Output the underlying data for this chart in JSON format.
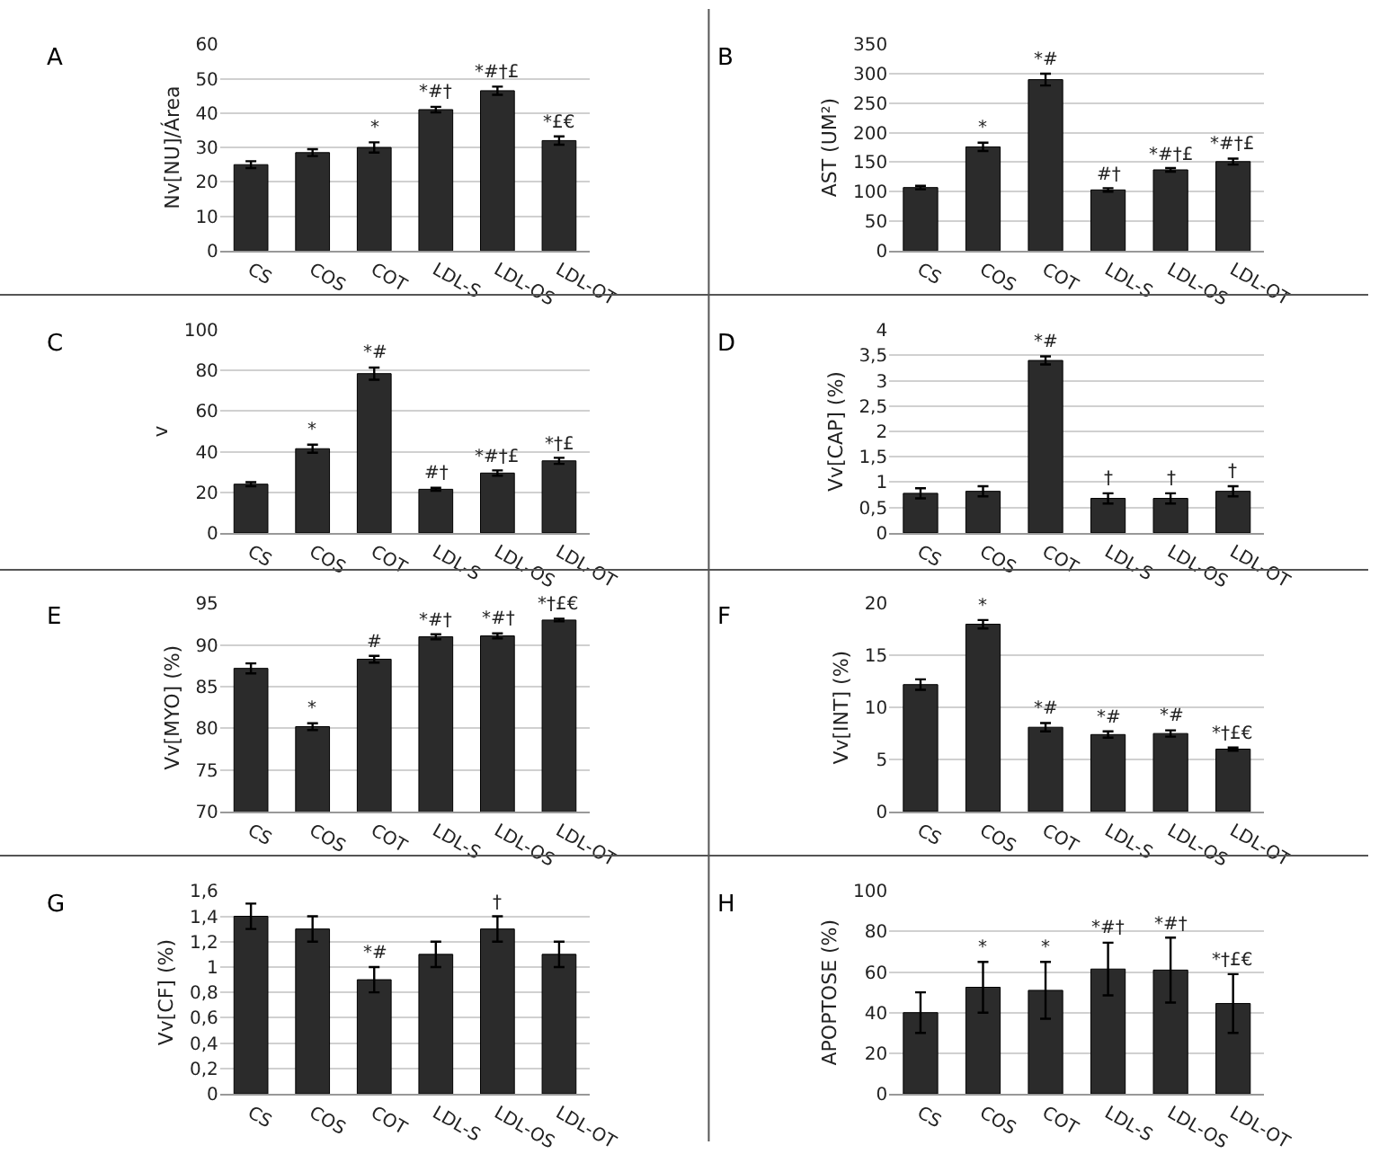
{
  "chart_data": [
    {
      "type": "bar",
      "title": "A",
      "ylabel": "Nv[NU]/Área",
      "categories": [
        "CS",
        "COS",
        "COT",
        "LDL-S",
        "LDL-OS",
        "LDL-OT"
      ],
      "values": [
        25,
        28.5,
        30,
        41,
        46.5,
        32
      ],
      "errors": [
        1,
        1,
        1.5,
        0.8,
        1.2,
        1.2
      ],
      "color": "#2b2b2b",
      "ylim": [
        0,
        60
      ],
      "yticks": [
        0,
        10,
        20,
        30,
        40,
        50,
        60
      ],
      "grid": "y",
      "annotations": [
        {
          "text": "*",
          "x": "COT",
          "y": 31.5
        },
        {
          "text": "*#†",
          "x": "LDL-S",
          "y": 41.8
        },
        {
          "text": "*#†£",
          "x": "LDL-OS",
          "y": 47.7
        },
        {
          "text": "*£€",
          "x": "LDL-OT",
          "y": 33.2
        }
      ]
    },
    {
      "type": "bar",
      "title": "B",
      "ylabel": "AST (UM²)",
      "categories": [
        "CS",
        "COS",
        "COT",
        "LDL-S",
        "LDL-OS",
        "LDL-OT"
      ],
      "values": [
        107,
        176,
        290,
        103,
        137,
        151
      ],
      "errors": [
        3,
        7,
        10,
        3,
        3,
        5
      ],
      "color": "#2b2b2b",
      "ylim": [
        0,
        350
      ],
      "yticks": [
        0,
        50,
        100,
        150,
        200,
        250,
        300,
        350
      ],
      "grid": "y",
      "annotations": [
        {
          "text": "*",
          "x": "COS",
          "y": 183
        },
        {
          "text": "*#",
          "x": "COT",
          "y": 300
        },
        {
          "text": "#†",
          "x": "LDL-S",
          "y": 106
        },
        {
          "text": "*#†£",
          "x": "LDL-OS",
          "y": 140
        },
        {
          "text": "*#†£",
          "x": "LDL-OT",
          "y": 156
        }
      ]
    },
    {
      "type": "bar",
      "title": "C",
      "ylabel": "v",
      "categories": [
        "CS",
        "COS",
        "COT",
        "LDL-S",
        "LDL-OS",
        "LDL-OT"
      ],
      "values": [
        24,
        41.5,
        78.5,
        21.5,
        29.5,
        35.5
      ],
      "errors": [
        1,
        2,
        3,
        0.7,
        1.3,
        1.5
      ],
      "color": "#2b2b2b",
      "ylim": [
        0,
        100
      ],
      "yticks": [
        0,
        20,
        40,
        60,
        80,
        100
      ],
      "grid": "y",
      "annotations": [
        {
          "text": "*",
          "x": "COS",
          "y": 43.5
        },
        {
          "text": "*#",
          "x": "COT",
          "y": 81.5
        },
        {
          "text": "#†",
          "x": "LDL-S",
          "y": 22.2
        },
        {
          "text": "*#†£",
          "x": "LDL-OS",
          "y": 30.8
        },
        {
          "text": "*†£",
          "x": "LDL-OT",
          "y": 37
        }
      ]
    },
    {
      "type": "bar",
      "title": "D",
      "ylabel": "Vv[CAP] (%)",
      "categories": [
        "CS",
        "COS",
        "COT",
        "LDL-S",
        "LDL-OS",
        "LDL-OT"
      ],
      "values": [
        0.78,
        0.82,
        3.4,
        0.68,
        0.68,
        0.82
      ],
      "errors": [
        0.1,
        0.1,
        0.08,
        0.1,
        0.1,
        0.1
      ],
      "color": "#2b2b2b",
      "ylim": [
        0,
        4
      ],
      "yticks": [
        0,
        {
          "value": 0.5,
          "label": "0,5"
        },
        1,
        {
          "value": 1.5,
          "label": "1,5"
        },
        2,
        {
          "value": 2.5,
          "label": "2,5"
        },
        3,
        {
          "value": 3.5,
          "label": "3,5"
        },
        4
      ],
      "grid": "y",
      "annotations": [
        {
          "text": "*#",
          "x": "COT",
          "y": 3.48
        },
        {
          "text": "†",
          "x": "LDL-S",
          "y": 0.78
        },
        {
          "text": "†",
          "x": "LDL-OS",
          "y": 0.78
        },
        {
          "text": "†",
          "x": "LDL-OT",
          "y": 0.92
        }
      ]
    },
    {
      "type": "bar",
      "title": "E",
      "ylabel": "Vv[MYO] (%)",
      "categories": [
        "CS",
        "COS",
        "COT",
        "LDL-S",
        "LDL-OS",
        "LDL-OT"
      ],
      "values": [
        87.2,
        80.2,
        88.3,
        91,
        91.1,
        93
      ],
      "errors": [
        0.6,
        0.4,
        0.4,
        0.3,
        0.3,
        0.15
      ],
      "color": "#2b2b2b",
      "ylim": [
        70,
        95
      ],
      "yticks": [
        70,
        75,
        80,
        85,
        90,
        95
      ],
      "grid": "y",
      "annotations": [
        {
          "text": "*",
          "x": "COS",
          "y": 80.6
        },
        {
          "text": "#",
          "x": "COT",
          "y": 88.7
        },
        {
          "text": "*#†",
          "x": "LDL-S",
          "y": 91.3
        },
        {
          "text": "*#†",
          "x": "LDL-OS",
          "y": 91.4
        },
        {
          "text": "*†£€",
          "x": "LDL-OT",
          "y": 93.15
        }
      ]
    },
    {
      "type": "bar",
      "title": "F",
      "ylabel": "Vv[INT] (%)",
      "categories": [
        "CS",
        "COS",
        "COT",
        "LDL-S",
        "LDL-OS",
        "LDL-OT"
      ],
      "values": [
        12.2,
        18,
        8.1,
        7.4,
        7.5,
        6
      ],
      "errors": [
        0.5,
        0.4,
        0.4,
        0.3,
        0.3,
        0.15
      ],
      "color": "#2b2b2b",
      "ylim": [
        0,
        20
      ],
      "yticks": [
        0,
        5,
        10,
        15,
        20
      ],
      "grid": "y",
      "annotations": [
        {
          "text": "*",
          "x": "COS",
          "y": 18.4
        },
        {
          "text": "*#",
          "x": "COT",
          "y": 8.5
        },
        {
          "text": "*#",
          "x": "LDL-S",
          "y": 7.7
        },
        {
          "text": "*#",
          "x": "LDL-OS",
          "y": 7.8
        },
        {
          "text": "*†£€",
          "x": "LDL-OT",
          "y": 6.15
        }
      ]
    },
    {
      "type": "bar",
      "title": "G",
      "ylabel": "Vv[CF] (%)",
      "categories": [
        "CS",
        "COS",
        "COT",
        "LDL-S",
        "LDL-OS",
        "LDL-OT"
      ],
      "values": [
        1.4,
        1.3,
        0.9,
        1.1,
        1.3,
        1.1
      ],
      "errors": [
        0.1,
        0.1,
        0.1,
        0.1,
        0.1,
        0.1
      ],
      "color": "#2b2b2b",
      "ylim": [
        0,
        1.6
      ],
      "yticks": [
        0,
        {
          "value": 0.2,
          "label": "0,2"
        },
        {
          "value": 0.4,
          "label": "0,4"
        },
        {
          "value": 0.6,
          "label": "0,6"
        },
        {
          "value": 0.8,
          "label": "0,8"
        },
        1,
        {
          "value": 1.2,
          "label": "1,2"
        },
        {
          "value": 1.4,
          "label": "1,4"
        },
        {
          "value": 1.6,
          "label": "1,6"
        }
      ],
      "grid": "y",
      "annotations": [
        {
          "text": "*#",
          "x": "COT",
          "y": 1
        },
        {
          "text": "†",
          "x": "LDL-OS",
          "y": 1.4
        }
      ]
    },
    {
      "type": "bar",
      "title": "H",
      "ylabel": "APOPTOSE (%)",
      "categories": [
        "CS",
        "COS",
        "COT",
        "LDL-S",
        "LDL-OS",
        "LDL-OT"
      ],
      "values": [
        40,
        52.5,
        51,
        61.5,
        61,
        44.5
      ],
      "errors": [
        10,
        12.5,
        14,
        13,
        16,
        14.5
      ],
      "color": "#2b2b2b",
      "ylim": [
        0,
        100
      ],
      "yticks": [
        0,
        20,
        40,
        60,
        80,
        100
      ],
      "grid": "y",
      "annotations": [
        {
          "text": "*",
          "x": "COS",
          "y": 65
        },
        {
          "text": "*",
          "x": "COT",
          "y": 65
        },
        {
          "text": "*#†",
          "x": "LDL-S",
          "y": 74.5
        },
        {
          "text": "*#†",
          "x": "LDL-OS",
          "y": 77
        },
        {
          "text": "*†£€",
          "x": "LDL-OT",
          "y": 59
        }
      ]
    }
  ]
}
